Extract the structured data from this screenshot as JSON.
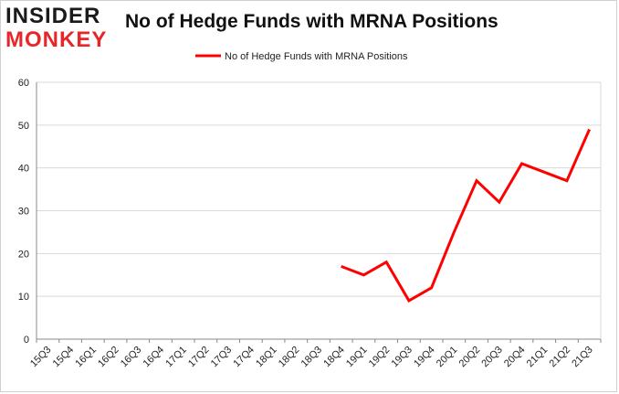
{
  "logo": {
    "line1": "INSIDER",
    "line2": "MONKEY"
  },
  "colors": {
    "series": "#ff0000",
    "grid": "#d9d9d9",
    "logo_red": "#e8262a"
  },
  "chart_data": {
    "type": "line",
    "title": "No of Hedge Funds with MRNA Positions",
    "xlabel": "",
    "ylabel": "",
    "ylim": [
      0,
      60
    ],
    "yticks": [
      0,
      10,
      20,
      30,
      40,
      50,
      60
    ],
    "grid": true,
    "legend_position": "top-center",
    "categories": [
      "15Q3",
      "15Q4",
      "16Q1",
      "16Q2",
      "16Q3",
      "16Q4",
      "17Q1",
      "17Q2",
      "17Q3",
      "17Q4",
      "18Q1",
      "18Q2",
      "18Q3",
      "18Q4",
      "19Q1",
      "19Q2",
      "19Q3",
      "19Q4",
      "20Q1",
      "20Q2",
      "20Q3",
      "20Q4",
      "21Q1",
      "21Q2",
      "21Q3"
    ],
    "series": [
      {
        "name": "No of Hedge Funds with MRNA Positions",
        "values": [
          null,
          null,
          null,
          null,
          null,
          null,
          null,
          null,
          null,
          null,
          null,
          null,
          null,
          17,
          15,
          18,
          9,
          12,
          25,
          37,
          32,
          41,
          39,
          37,
          49
        ]
      }
    ]
  }
}
